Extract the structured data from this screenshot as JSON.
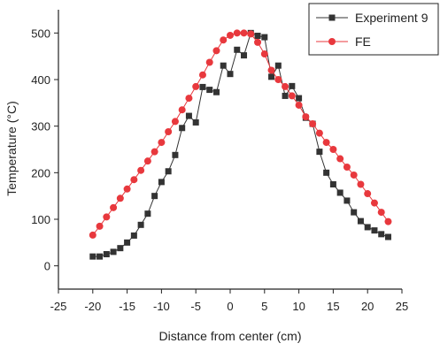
{
  "chart_data": {
    "type": "line",
    "xlabel": "Distance from center (cm)",
    "ylabel": "Temperature (°C)",
    "xlim": [
      -25,
      25
    ],
    "ylim": [
      -50,
      550
    ],
    "xticks": [
      -25,
      -20,
      -15,
      -10,
      -5,
      0,
      5,
      10,
      15,
      20,
      25
    ],
    "yticks": [
      0,
      100,
      200,
      300,
      400,
      500
    ],
    "grid": false,
    "legend_position": "top-right",
    "series": [
      {
        "name": "Experiment 9",
        "color": "#333333",
        "marker": "square",
        "x": [
          -20,
          -19,
          -18,
          -17,
          -16,
          -15,
          -14,
          -13,
          -12,
          -11,
          -10,
          -9,
          -8,
          -7,
          -6,
          -5,
          -4,
          -3,
          -2,
          -1,
          0,
          1,
          2,
          3,
          4,
          5,
          6,
          7,
          8,
          9,
          10,
          11,
          12,
          13,
          14,
          15,
          16,
          17,
          18,
          19,
          20,
          21,
          22,
          23
        ],
        "y": [
          20,
          20,
          25,
          30,
          38,
          50,
          65,
          88,
          112,
          150,
          180,
          203,
          238,
          296,
          322,
          308,
          384,
          378,
          373,
          430,
          412,
          464,
          452,
          500,
          494,
          491,
          406,
          430,
          365,
          386,
          360,
          318,
          305,
          245,
          200,
          175,
          157,
          140,
          115,
          96,
          83,
          76,
          68,
          62
        ]
      },
      {
        "name": "FE",
        "color": "#e8383d",
        "marker": "circle",
        "x": [
          -20,
          -19,
          -18,
          -17,
          -16,
          -15,
          -14,
          -13,
          -12,
          -11,
          -10,
          -9,
          -8,
          -7,
          -6,
          -5,
          -4,
          -3,
          -2,
          -1,
          0,
          1,
          2,
          3,
          4,
          5,
          6,
          7,
          8,
          9,
          10,
          11,
          12,
          13,
          14,
          15,
          16,
          17,
          18,
          19,
          20,
          21,
          22,
          23
        ],
        "y": [
          66,
          85,
          105,
          125,
          145,
          165,
          185,
          205,
          225,
          245,
          265,
          288,
          310,
          335,
          360,
          385,
          410,
          437,
          462,
          485,
          495,
          500,
          500,
          498,
          480,
          455,
          420,
          400,
          385,
          365,
          345,
          320,
          305,
          285,
          265,
          250,
          230,
          212,
          195,
          175,
          155,
          135,
          115,
          95
        ]
      }
    ]
  }
}
